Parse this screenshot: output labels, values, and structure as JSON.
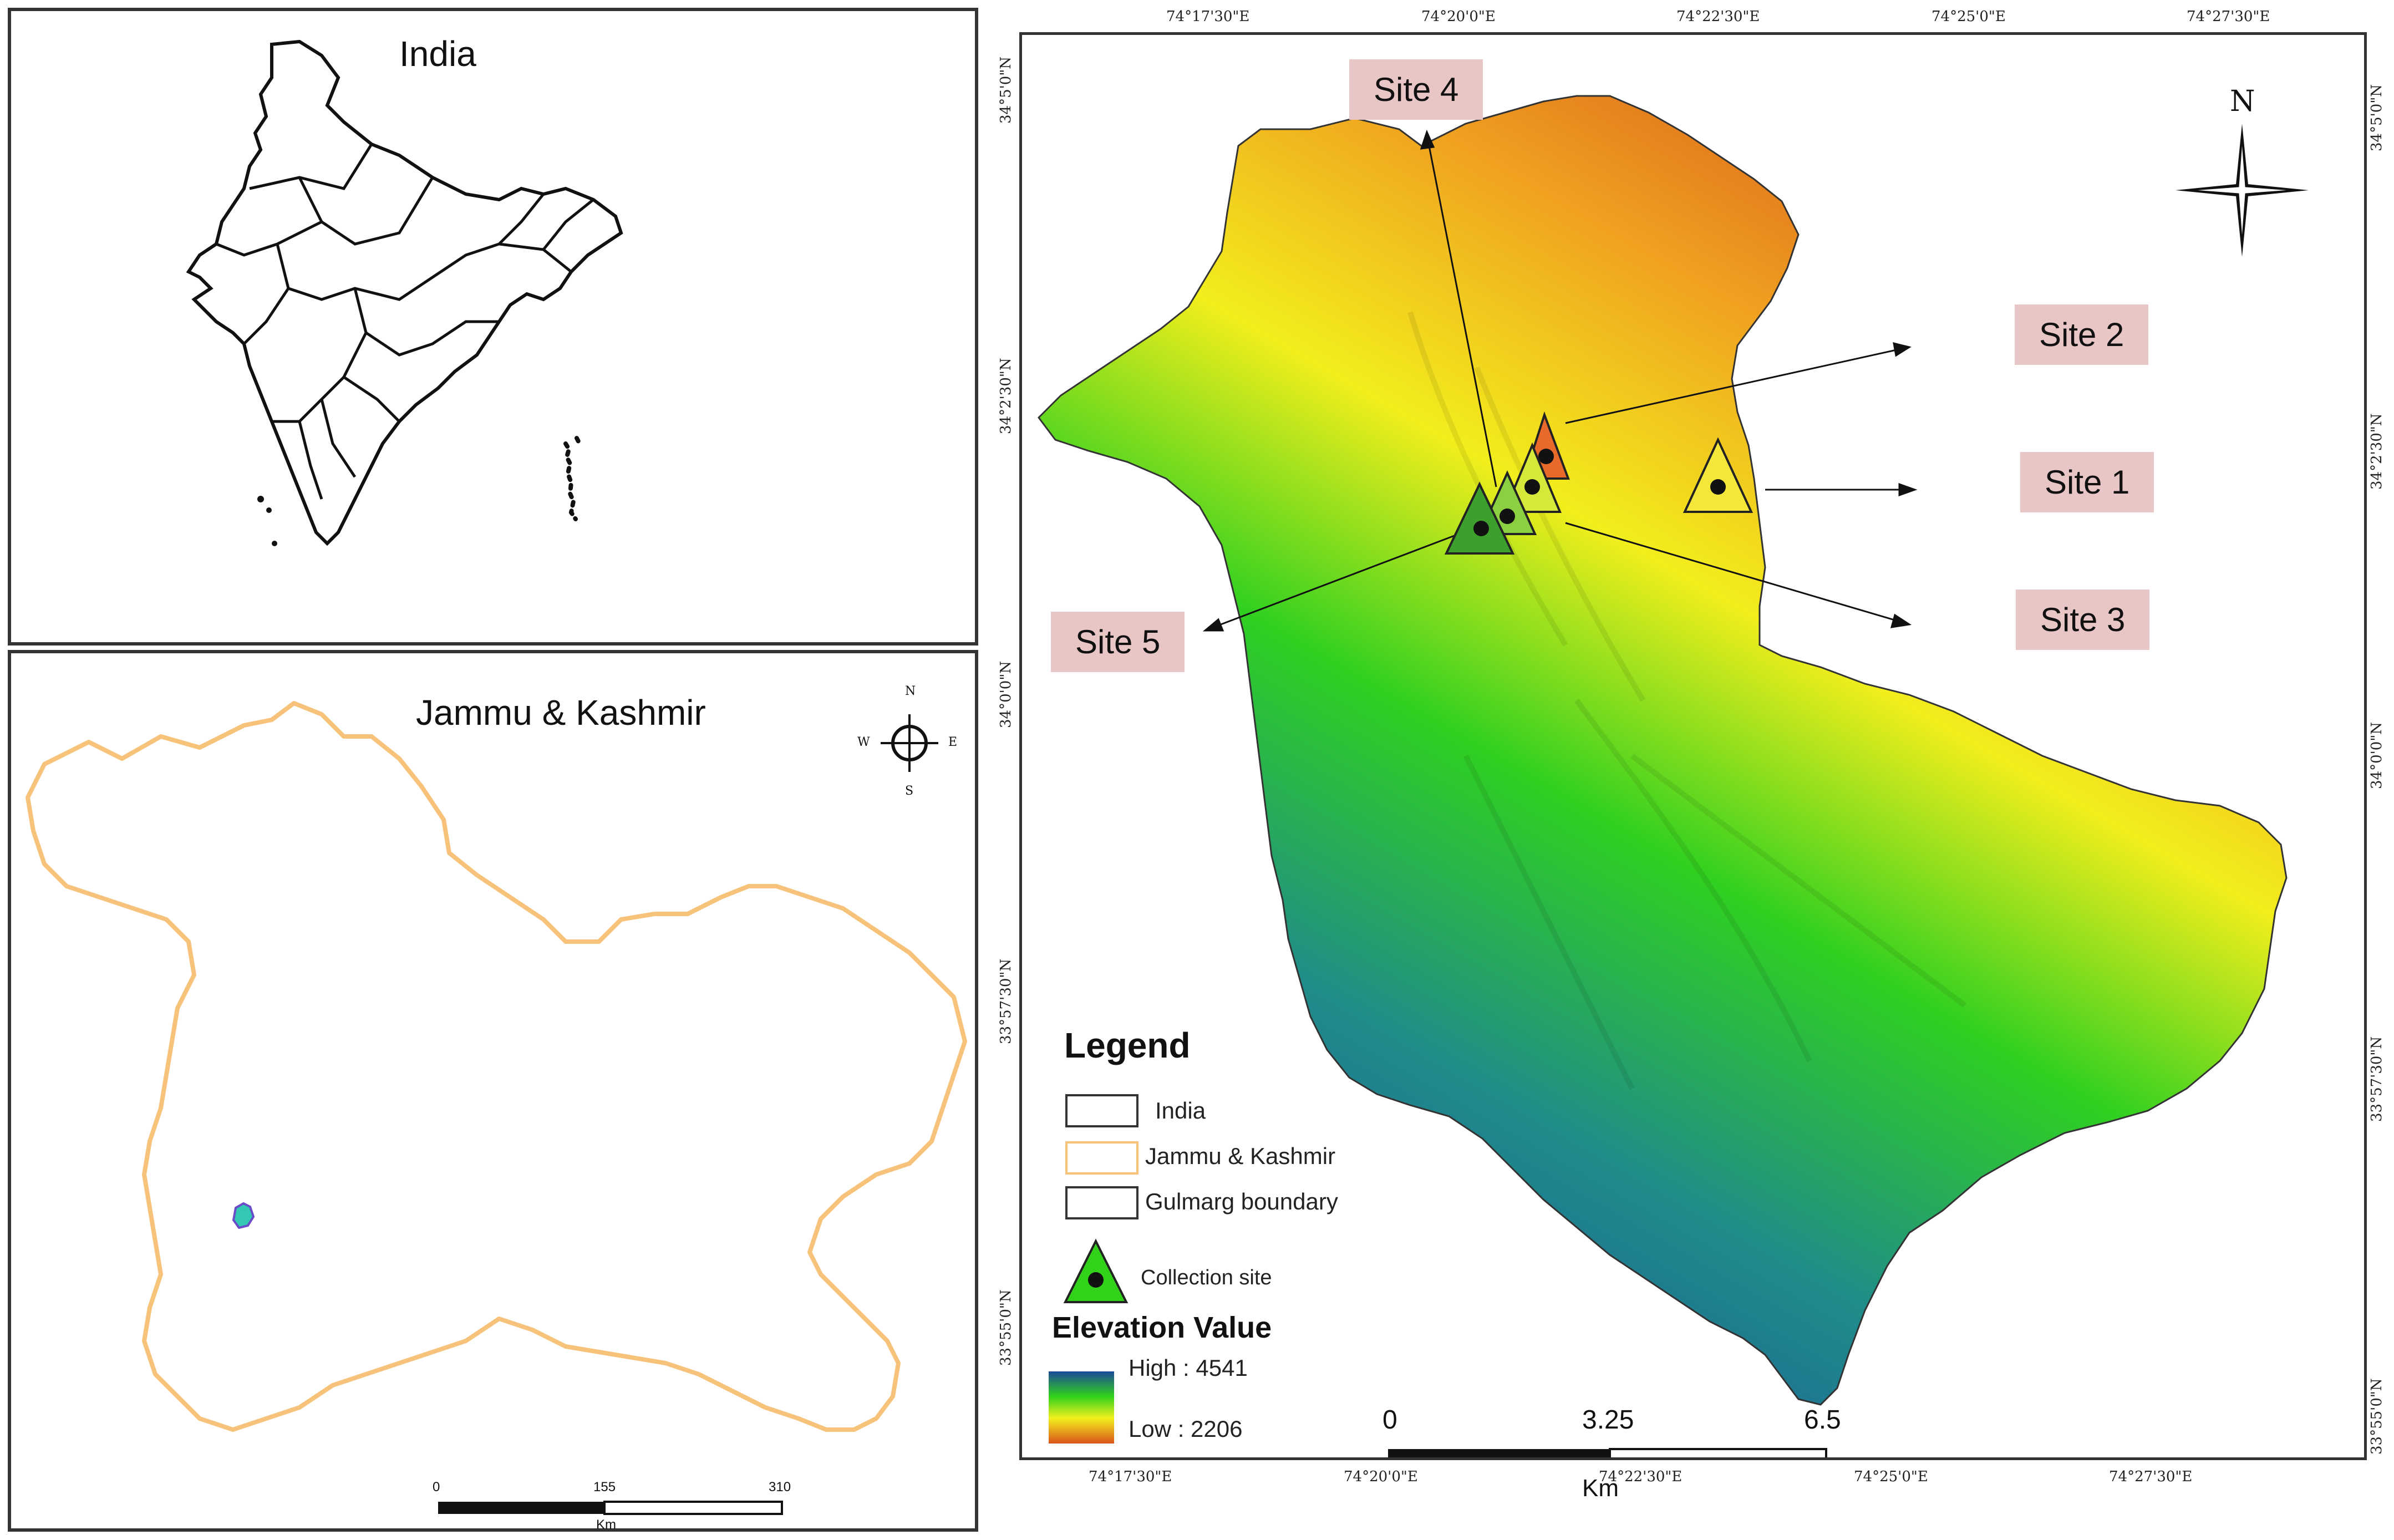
{
  "india_panel": {
    "title": "India"
  },
  "jk_panel": {
    "title": "Jammu & Kashmir",
    "compass": {
      "n": "N",
      "e": "E",
      "s": "S",
      "w": "W"
    },
    "scale": {
      "ticks": [
        "0",
        "155",
        "310"
      ],
      "unit": "Km"
    }
  },
  "main_map": {
    "top_coords": [
      "74°17'30\"E",
      "74°20'0\"E",
      "74°22'30\"E",
      "74°25'0\"E",
      "74°27'30\"E"
    ],
    "bottom_coords": [
      "74°17'30\"E",
      "74°20'0\"E",
      "74°22'30\"E",
      "74°25'0\"E",
      "74°27'30\"E"
    ],
    "left_coords": [
      "34°5'0\"N",
      "34°2'30\"N",
      "34°0'0\"N",
      "33°57'30\"N",
      "33°55'0\"N"
    ],
    "right_coords": [
      "34°5'0\"N",
      "34°2'30\"N",
      "34°0'0\"N",
      "33°57'30\"N",
      "33°55'0\"N"
    ],
    "north_label": "N",
    "sites": [
      {
        "label": "Site 4"
      },
      {
        "label": "Site 2"
      },
      {
        "label": "Site 1"
      },
      {
        "label": "Site 3"
      },
      {
        "label": "Site 5"
      }
    ],
    "legend": {
      "title": "Legend",
      "items": [
        "India",
        "Jammu & Kashmir",
        "Gulmarg boundary"
      ],
      "collection_site": "Collection site",
      "elevation_title": "Elevation Value",
      "high": "High : 4541",
      "low": "Low : 2206",
      "colors": {
        "high": "#1a4a9a",
        "mid": "#32d21a",
        "yellow": "#f4f01e",
        "low": "#d9541a"
      }
    },
    "scale": {
      "ticks": [
        "0",
        "3.25",
        "6.5"
      ],
      "unit": "Km"
    }
  }
}
